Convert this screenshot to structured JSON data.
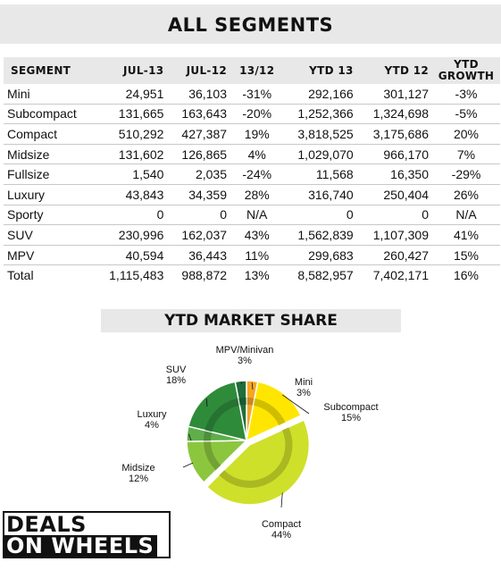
{
  "chart_data": [
    {
      "type": "table",
      "title": "ALL SEGMENTS",
      "columns": [
        "SEGMENT",
        "JUL-13",
        "JUL-12",
        "13/12",
        "YTD 13",
        "YTD 12",
        "YTD GROWTH"
      ],
      "rows": [
        [
          "Mini",
          "24,951",
          "36,103",
          "-31%",
          "292,166",
          "301,127",
          "-3%"
        ],
        [
          "Subcompact",
          "131,665",
          "163,643",
          "-20%",
          "1,252,366",
          "1,324,698",
          "-5%"
        ],
        [
          "Compact",
          "510,292",
          "427,387",
          "19%",
          "3,818,525",
          "3,175,686",
          "20%"
        ],
        [
          "Midsize",
          "131,602",
          "126,865",
          "4%",
          "1,029,070",
          "966,170",
          "7%"
        ],
        [
          "Fullsize",
          "1,540",
          "2,035",
          "-24%",
          "11,568",
          "16,350",
          "-29%"
        ],
        [
          "Luxury",
          "43,843",
          "34,359",
          "28%",
          "316,740",
          "250,404",
          "26%"
        ],
        [
          "Sporty",
          "0",
          "0",
          "N/A",
          "0",
          "0",
          "N/A"
        ],
        [
          "SUV",
          "230,996",
          "162,037",
          "43%",
          "1,562,839",
          "1,107,309",
          "41%"
        ],
        [
          "MPV",
          "40,594",
          "36,443",
          "11%",
          "299,683",
          "260,427",
          "15%"
        ],
        [
          "Total",
          "1,115,483",
          "988,872",
          "13%",
          "8,582,957",
          "7,402,171",
          "16%"
        ]
      ]
    },
    {
      "type": "pie",
      "title": "YTD MARKET SHARE",
      "slices": [
        {
          "label": "Mini",
          "pct": "3%",
          "value": 3,
          "color": "#f5a623"
        },
        {
          "label": "Subcompact",
          "pct": "15%",
          "value": 15,
          "color": "#ffe600"
        },
        {
          "label": "Compact",
          "pct": "44%",
          "value": 44,
          "color": "#cfe02a"
        },
        {
          "label": "Midsize",
          "pct": "12%",
          "value": 12,
          "color": "#8cc63f"
        },
        {
          "label": "Luxury",
          "pct": "4%",
          "value": 4,
          "color": "#5fae4a"
        },
        {
          "label": "SUV",
          "pct": "18%",
          "value": 18,
          "color": "#2e8b3a"
        },
        {
          "label": "MPV/Minivan",
          "pct": "3%",
          "value": 3,
          "color": "#1f6e3c"
        }
      ]
    }
  ],
  "logo": {
    "line1": "DEALS",
    "line2": "ON WHEELS"
  }
}
